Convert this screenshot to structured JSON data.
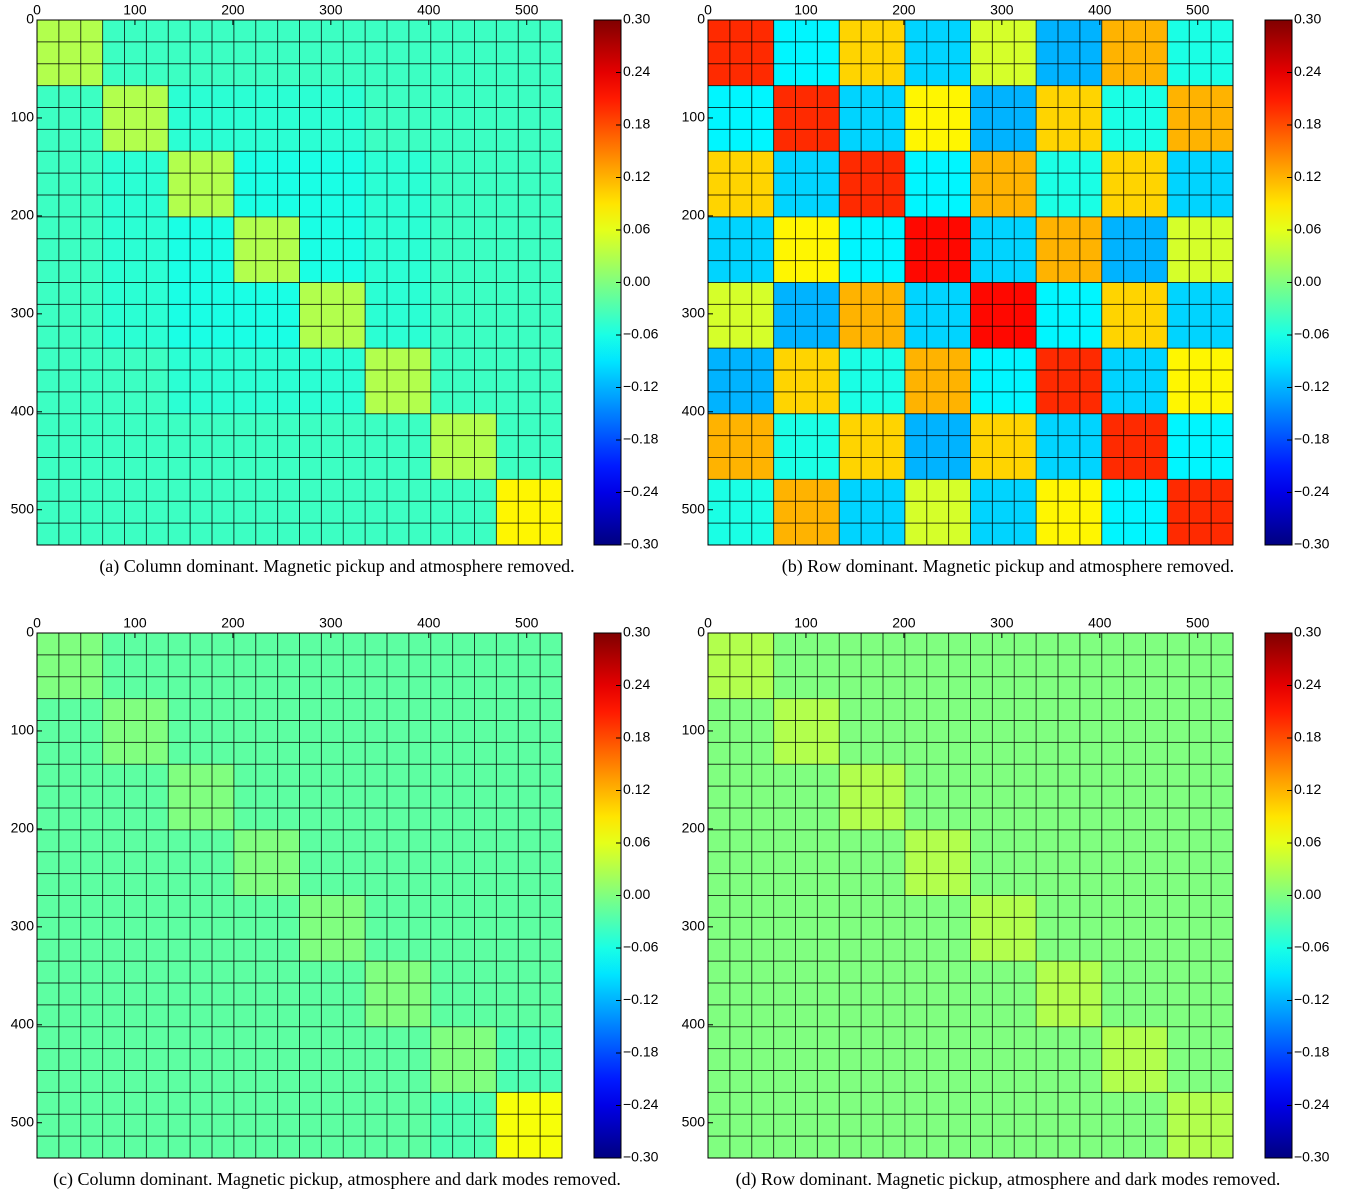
{
  "chart_data": [
    {
      "type": "heatmap",
      "caption": "(a) Column dominant. Magnetic pickup and atmosphere removed.",
      "xlim": [
        0,
        536
      ],
      "ylim": [
        0,
        536
      ],
      "xticks": [
        0,
        100,
        200,
        300,
        400,
        500
      ],
      "yticks": [
        0,
        100,
        200,
        300,
        400,
        500
      ],
      "colormap": "jet",
      "clim": [
        -0.3,
        0.3
      ],
      "colorbar_ticks": [
        {
          "value": 0.3,
          "label": "0.30"
        },
        {
          "value": 0.24,
          "label": "0.24"
        },
        {
          "value": 0.18,
          "label": "0.18"
        },
        {
          "value": 0.12,
          "label": "0.12"
        },
        {
          "value": 0.06,
          "label": "0.06"
        },
        {
          "value": 0,
          "label": "0.00"
        },
        {
          "value": -0.06,
          "label": "−0.06"
        },
        {
          "value": -0.12,
          "label": "−0.12"
        },
        {
          "value": -0.18,
          "label": "−0.18"
        },
        {
          "value": -0.24,
          "label": "−0.24"
        },
        {
          "value": -0.3,
          "label": "−0.30"
        }
      ],
      "values": [
        [
          0.03,
          -0.04,
          -0.04,
          -0.04,
          -0.04,
          -0.04,
          -0.04,
          -0.04
        ],
        [
          -0.04,
          0.03,
          -0.05,
          -0.05,
          -0.05,
          -0.04,
          -0.04,
          -0.04
        ],
        [
          -0.04,
          -0.05,
          0.03,
          -0.06,
          -0.06,
          -0.05,
          -0.04,
          -0.04
        ],
        [
          -0.04,
          -0.05,
          -0.06,
          0.03,
          -0.06,
          -0.05,
          -0.04,
          -0.04
        ],
        [
          -0.04,
          -0.05,
          -0.06,
          -0.06,
          0.03,
          -0.05,
          -0.04,
          -0.04
        ],
        [
          -0.04,
          -0.04,
          -0.05,
          -0.05,
          -0.05,
          0.03,
          -0.04,
          -0.04
        ],
        [
          -0.04,
          -0.04,
          -0.04,
          -0.04,
          -0.04,
          -0.04,
          0.03,
          -0.04
        ],
        [
          -0.04,
          -0.04,
          -0.04,
          -0.04,
          -0.04,
          -0.04,
          -0.04,
          0.08
        ]
      ]
    },
    {
      "type": "heatmap",
      "caption": "(b) Row dominant. Magnetic pickup and atmosphere removed.",
      "xlim": [
        0,
        536
      ],
      "ylim": [
        0,
        536
      ],
      "xticks": [
        0,
        100,
        200,
        300,
        400,
        500
      ],
      "yticks": [
        0,
        100,
        200,
        300,
        400,
        500
      ],
      "colormap": "jet",
      "clim": [
        -0.3,
        0.3
      ],
      "colorbar_ticks": [
        {
          "value": 0.3,
          "label": "0.30"
        },
        {
          "value": 0.24,
          "label": "0.24"
        },
        {
          "value": 0.18,
          "label": "0.18"
        },
        {
          "value": 0.12,
          "label": "0.12"
        },
        {
          "value": 0.06,
          "label": "0.06"
        },
        {
          "value": 0,
          "label": "0.00"
        },
        {
          "value": -0.06,
          "label": "−0.06"
        },
        {
          "value": -0.12,
          "label": "−0.12"
        },
        {
          "value": -0.18,
          "label": "−0.18"
        },
        {
          "value": -0.24,
          "label": "−0.24"
        },
        {
          "value": -0.3,
          "label": "−0.30"
        }
      ],
      "values": [
        [
          0.2,
          -0.08,
          0.1,
          -0.1,
          0.05,
          -0.12,
          0.12,
          -0.06
        ],
        [
          -0.08,
          0.2,
          -0.1,
          0.08,
          -0.12,
          0.1,
          -0.06,
          0.12
        ],
        [
          0.1,
          -0.1,
          0.2,
          -0.08,
          0.12,
          -0.06,
          0.1,
          -0.1
        ],
        [
          -0.1,
          0.08,
          -0.08,
          0.22,
          -0.1,
          0.12,
          -0.12,
          0.05
        ],
        [
          0.05,
          -0.12,
          0.12,
          -0.1,
          0.22,
          -0.08,
          0.1,
          -0.1
        ],
        [
          -0.12,
          0.1,
          -0.06,
          0.12,
          -0.08,
          0.2,
          -0.1,
          0.08
        ],
        [
          0.12,
          -0.06,
          0.1,
          -0.12,
          0.1,
          -0.1,
          0.2,
          -0.08
        ],
        [
          -0.06,
          0.12,
          -0.1,
          0.05,
          -0.1,
          0.08,
          -0.08,
          0.2
        ]
      ]
    },
    {
      "type": "heatmap",
      "caption": "(c) Column dominant. Magnetic pickup, atmosphere and dark modes removed.",
      "xlim": [
        0,
        536
      ],
      "ylim": [
        0,
        536
      ],
      "xticks": [
        0,
        100,
        200,
        300,
        400,
        500
      ],
      "yticks": [
        0,
        100,
        200,
        300,
        400,
        500
      ],
      "colormap": "jet",
      "clim": [
        -0.3,
        0.3
      ],
      "colorbar_ticks": [
        {
          "value": 0.3,
          "label": "0.30"
        },
        {
          "value": 0.24,
          "label": "0.24"
        },
        {
          "value": 0.18,
          "label": "0.18"
        },
        {
          "value": 0.12,
          "label": "0.12"
        },
        {
          "value": 0.06,
          "label": "0.06"
        },
        {
          "value": 0,
          "label": "0.00"
        },
        {
          "value": -0.06,
          "label": "−0.06"
        },
        {
          "value": -0.12,
          "label": "−0.12"
        },
        {
          "value": -0.18,
          "label": "−0.18"
        },
        {
          "value": -0.24,
          "label": "−0.24"
        },
        {
          "value": -0.3,
          "label": "−0.30"
        }
      ],
      "values": [
        [
          0.0,
          -0.02,
          -0.02,
          -0.02,
          -0.02,
          -0.02,
          -0.02,
          -0.02
        ],
        [
          -0.02,
          0.0,
          -0.02,
          -0.02,
          -0.02,
          -0.02,
          -0.02,
          -0.02
        ],
        [
          -0.02,
          -0.02,
          0.0,
          -0.02,
          -0.02,
          -0.02,
          -0.02,
          -0.02
        ],
        [
          -0.02,
          -0.02,
          -0.02,
          0.0,
          -0.02,
          -0.02,
          -0.02,
          -0.02
        ],
        [
          -0.02,
          -0.02,
          -0.02,
          -0.02,
          0.0,
          -0.02,
          -0.02,
          -0.02
        ],
        [
          -0.02,
          -0.02,
          -0.02,
          -0.02,
          -0.02,
          0.0,
          -0.02,
          -0.02
        ],
        [
          -0.02,
          -0.02,
          -0.02,
          -0.02,
          -0.02,
          -0.02,
          0.0,
          -0.03
        ],
        [
          -0.02,
          -0.02,
          -0.02,
          -0.02,
          -0.02,
          -0.02,
          -0.03,
          0.07
        ]
      ]
    },
    {
      "type": "heatmap",
      "caption": "(d) Row dominant. Magnetic pickup, atmosphere and dark modes removed.",
      "xlim": [
        0,
        536
      ],
      "ylim": [
        0,
        536
      ],
      "xticks": [
        0,
        100,
        200,
        300,
        400,
        500
      ],
      "yticks": [
        0,
        100,
        200,
        300,
        400,
        500
      ],
      "colormap": "jet",
      "clim": [
        -0.3,
        0.3
      ],
      "colorbar_ticks": [
        {
          "value": 0.3,
          "label": "0.30"
        },
        {
          "value": 0.24,
          "label": "0.24"
        },
        {
          "value": 0.18,
          "label": "0.18"
        },
        {
          "value": 0.12,
          "label": "0.12"
        },
        {
          "value": 0.06,
          "label": "0.06"
        },
        {
          "value": 0,
          "label": "0.00"
        },
        {
          "value": -0.06,
          "label": "−0.06"
        },
        {
          "value": -0.12,
          "label": "−0.12"
        },
        {
          "value": -0.18,
          "label": "−0.18"
        },
        {
          "value": -0.24,
          "label": "−0.24"
        },
        {
          "value": -0.3,
          "label": "−0.30"
        }
      ],
      "values": [
        [
          0.03,
          0.0,
          0.0,
          0.0,
          0.0,
          0.0,
          0.0,
          0.0
        ],
        [
          0.0,
          0.03,
          0.0,
          0.0,
          0.0,
          0.0,
          0.0,
          0.0
        ],
        [
          0.0,
          0.0,
          0.03,
          0.0,
          0.0,
          0.0,
          0.0,
          0.0
        ],
        [
          0.0,
          0.0,
          0.0,
          0.03,
          0.0,
          0.0,
          0.0,
          0.0
        ],
        [
          0.0,
          0.0,
          0.0,
          0.0,
          0.03,
          0.0,
          0.0,
          0.0
        ],
        [
          0.0,
          0.0,
          0.0,
          0.0,
          0.0,
          0.03,
          0.0,
          0.0
        ],
        [
          0.0,
          0.0,
          0.0,
          0.0,
          0.0,
          0.0,
          0.03,
          0.0
        ],
        [
          0.0,
          0.0,
          0.0,
          0.0,
          0.0,
          0.0,
          0.0,
          0.03
        ]
      ]
    }
  ]
}
